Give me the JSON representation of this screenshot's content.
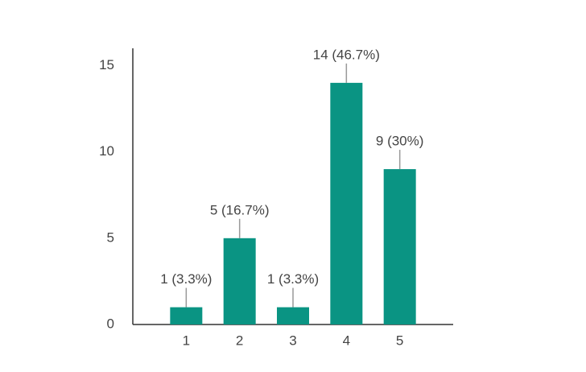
{
  "chart_data": {
    "type": "bar",
    "categories": [
      "1",
      "2",
      "3",
      "4",
      "5"
    ],
    "values": [
      1,
      5,
      1,
      14,
      9
    ],
    "value_labels": [
      "1 (3.3%)",
      "5 (16.7%)",
      "1 (3.3%)",
      "14 (46.7%)",
      "9 (30%)"
    ],
    "color": "#0a9483",
    "ylim": [
      0,
      16
    ],
    "yticks": [
      0,
      5,
      10,
      15
    ],
    "grid": false
  }
}
